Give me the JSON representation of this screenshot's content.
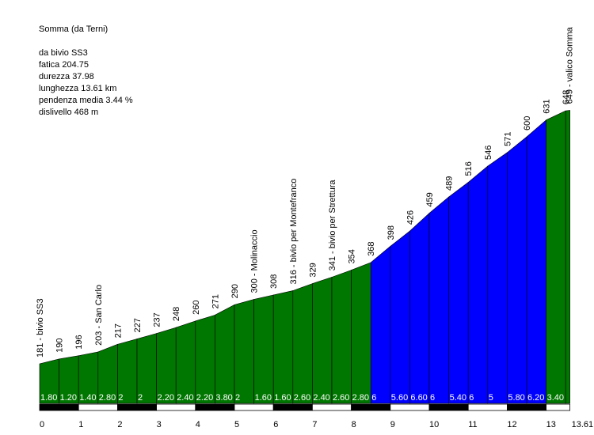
{
  "info": {
    "title": "Somma (da Terni)",
    "start": "da bivio SS3",
    "fatica": "fatica 204.75",
    "durezza": "durezza 37.98",
    "lunghezza": "lunghezza 13.61 km",
    "pendenza": "pendenza media 3.44 %",
    "dislivello": "dislivello 468 m"
  },
  "chart_data": {
    "type": "area",
    "title": "Somma (da Terni)",
    "xlabel": "",
    "ylabel": "",
    "xlim": [
      0,
      13.61
    ],
    "x_ticks": [
      "0",
      "1",
      "2",
      "3",
      "4",
      "5",
      "6",
      "7",
      "8",
      "9",
      "10",
      "11",
      "12",
      "13",
      "13.61"
    ],
    "grid": false,
    "colors": {
      "green": "#007700",
      "blue": "#0000ff",
      "black": "#000000",
      "white": "#ffffff"
    },
    "points": [
      {
        "x": 0.0,
        "y": 181,
        "label": "181 - bivio SS3"
      },
      {
        "x": 0.5,
        "y": 190,
        "label": "190"
      },
      {
        "x": 1.0,
        "y": 196,
        "label": "196"
      },
      {
        "x": 1.5,
        "y": 203,
        "label": "203 - San Carlo"
      },
      {
        "x": 2.0,
        "y": 217,
        "label": "217"
      },
      {
        "x": 2.5,
        "y": 227,
        "label": "227"
      },
      {
        "x": 3.0,
        "y": 237,
        "label": "237"
      },
      {
        "x": 3.5,
        "y": 248,
        "label": "248"
      },
      {
        "x": 4.0,
        "y": 260,
        "label": "260"
      },
      {
        "x": 4.5,
        "y": 271,
        "label": "271"
      },
      {
        "x": 5.0,
        "y": 290,
        "label": "290"
      },
      {
        "x": 5.5,
        "y": 300,
        "label": "300 - Molinaccio"
      },
      {
        "x": 6.0,
        "y": 308,
        "label": "308"
      },
      {
        "x": 6.5,
        "y": 316,
        "label": "316 - bivio per Montefranco"
      },
      {
        "x": 7.0,
        "y": 329,
        "label": "329"
      },
      {
        "x": 7.5,
        "y": 341,
        "label": "341 - bivio per Strettura"
      },
      {
        "x": 8.0,
        "y": 354,
        "label": "354"
      },
      {
        "x": 8.5,
        "y": 368,
        "label": "368"
      },
      {
        "x": 9.0,
        "y": 398,
        "label": "398"
      },
      {
        "x": 9.5,
        "y": 426,
        "label": "426"
      },
      {
        "x": 10.0,
        "y": 459,
        "label": "459"
      },
      {
        "x": 10.5,
        "y": 489,
        "label": "489"
      },
      {
        "x": 11.0,
        "y": 516,
        "label": "516"
      },
      {
        "x": 11.5,
        "y": 546,
        "label": "546"
      },
      {
        "x": 12.0,
        "y": 571,
        "label": "571"
      },
      {
        "x": 12.5,
        "y": 600,
        "label": "600"
      },
      {
        "x": 13.0,
        "y": 631,
        "label": "631"
      },
      {
        "x": 13.5,
        "y": 648,
        "label": "648"
      },
      {
        "x": 13.61,
        "y": 649,
        "label": "649 - valico Somma"
      }
    ],
    "segments": [
      {
        "from": 0.0,
        "to": 0.5,
        "grade": "1.80",
        "color": "green"
      },
      {
        "from": 0.5,
        "to": 1.0,
        "grade": "1.20",
        "color": "green"
      },
      {
        "from": 1.0,
        "to": 1.5,
        "grade": "1.40",
        "color": "green"
      },
      {
        "from": 1.5,
        "to": 2.0,
        "grade": "2.80",
        "color": "green"
      },
      {
        "from": 2.0,
        "to": 2.5,
        "grade": "2",
        "color": "green"
      },
      {
        "from": 2.5,
        "to": 3.0,
        "grade": "2",
        "color": "green"
      },
      {
        "from": 3.0,
        "to": 3.5,
        "grade": "2.20",
        "color": "green"
      },
      {
        "from": 3.5,
        "to": 4.0,
        "grade": "2.40",
        "color": "green"
      },
      {
        "from": 4.0,
        "to": 4.5,
        "grade": "2.20",
        "color": "green"
      },
      {
        "from": 4.5,
        "to": 5.0,
        "grade": "3.80",
        "color": "green"
      },
      {
        "from": 5.0,
        "to": 5.5,
        "grade": "2",
        "color": "green"
      },
      {
        "from": 5.5,
        "to": 6.0,
        "grade": "1.60",
        "color": "green"
      },
      {
        "from": 6.0,
        "to": 6.5,
        "grade": "1.60",
        "color": "green"
      },
      {
        "from": 6.5,
        "to": 7.0,
        "grade": "2.60",
        "color": "green"
      },
      {
        "from": 7.0,
        "to": 7.5,
        "grade": "2.40",
        "color": "green"
      },
      {
        "from": 7.5,
        "to": 8.0,
        "grade": "2.60",
        "color": "green"
      },
      {
        "from": 8.0,
        "to": 8.5,
        "grade": "2.80",
        "color": "green"
      },
      {
        "from": 8.5,
        "to": 9.0,
        "grade": "6",
        "color": "blue"
      },
      {
        "from": 9.0,
        "to": 9.5,
        "grade": "5.60",
        "color": "blue"
      },
      {
        "from": 9.5,
        "to": 10.0,
        "grade": "6.60",
        "color": "blue"
      },
      {
        "from": 10.0,
        "to": 10.5,
        "grade": "6",
        "color": "blue"
      },
      {
        "from": 10.5,
        "to": 11.0,
        "grade": "5.40",
        "color": "blue"
      },
      {
        "from": 11.0,
        "to": 11.5,
        "grade": "6",
        "color": "blue"
      },
      {
        "from": 11.5,
        "to": 12.0,
        "grade": "5",
        "color": "blue"
      },
      {
        "from": 12.0,
        "to": 12.5,
        "grade": "5.80",
        "color": "blue"
      },
      {
        "from": 12.5,
        "to": 13.0,
        "grade": "6.20",
        "color": "blue"
      },
      {
        "from": 13.0,
        "to": 13.5,
        "grade": "3.40",
        "color": "green"
      },
      {
        "from": 13.5,
        "to": 13.61,
        "grade": "",
        "color": "green"
      }
    ]
  }
}
